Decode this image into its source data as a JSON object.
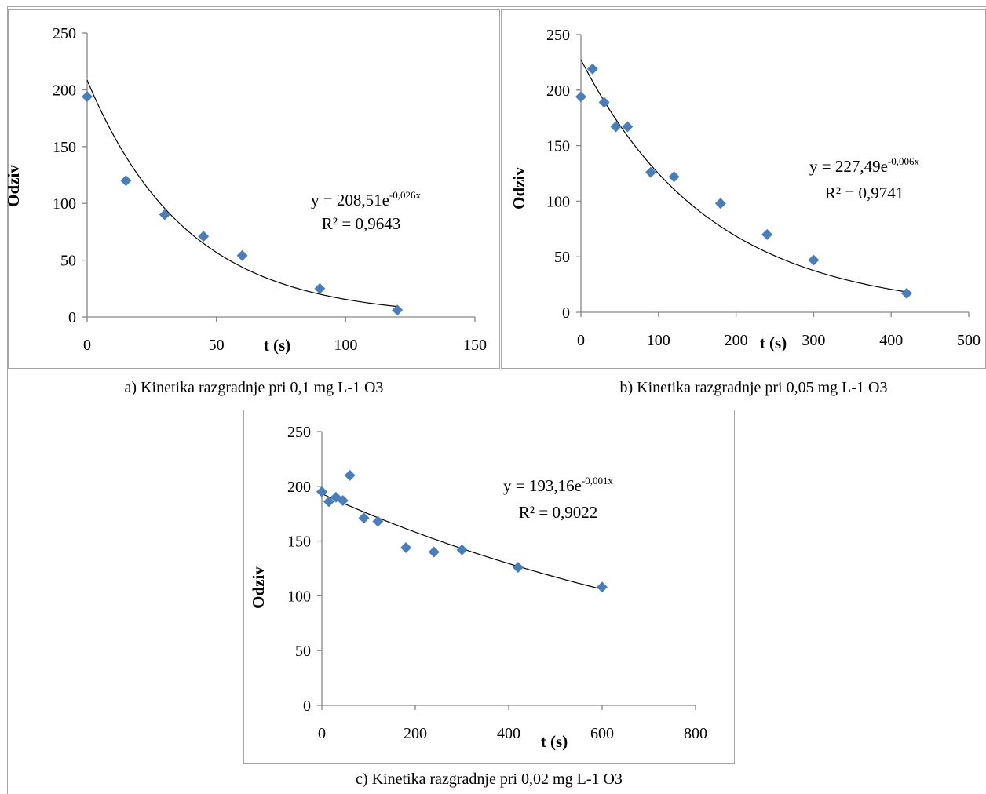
{
  "colors": {
    "marker": "#4a7ebb",
    "trendline": "#000000",
    "axis": "#868686",
    "frame": "#a6a6a6"
  },
  "chart_data": [
    {
      "type": "scatter",
      "caption": "a) Kinetika razgradnje pri 0,1 mg L-1 O3",
      "xlabel": "t (s)",
      "ylabel": "Odziv",
      "xlim": [
        0,
        150
      ],
      "ylim": [
        0,
        250
      ],
      "xticks": [
        "0",
        "50",
        "100",
        "150"
      ],
      "yticks": [
        "0",
        "50",
        "100",
        "150",
        "200",
        "250"
      ],
      "grid": false,
      "x": [
        0,
        15,
        30,
        45,
        60,
        90,
        120
      ],
      "y": [
        194,
        120,
        90,
        71,
        54,
        25,
        6
      ],
      "trendline": {
        "type": "exponential",
        "a": 208.51,
        "b": -0.026,
        "range": [
          0,
          120
        ],
        "equation_main": "y = 208,51e",
        "equation_exp": "-0,026x",
        "r2": "R² = 0,9643"
      }
    },
    {
      "type": "scatter",
      "caption": "b) Kinetika razgradnje pri 0,05 mg L-1 O3",
      "xlabel": "t (s)",
      "ylabel": "Odziv",
      "xlim": [
        0,
        500
      ],
      "ylim": [
        0,
        250
      ],
      "xticks": [
        "0",
        "100",
        "200",
        "300",
        "400",
        "500"
      ],
      "yticks": [
        "0",
        "50",
        "100",
        "150",
        "200",
        "250"
      ],
      "grid": false,
      "x": [
        0,
        15,
        30,
        45,
        60,
        90,
        120,
        180,
        240,
        300,
        420
      ],
      "y": [
        194,
        219,
        189,
        167,
        167,
        126,
        122,
        98,
        70,
        47,
        17
      ],
      "trendline": {
        "type": "exponential",
        "a": 227.49,
        "b": -0.006,
        "range": [
          0,
          420
        ],
        "equation_main": "y = 227,49e",
        "equation_exp": "-0,006x",
        "r2": "R² = 0,9741"
      }
    },
    {
      "type": "scatter",
      "caption": "c) Kinetika razgradnje pri 0,02 mg L-1 O3",
      "xlabel": "t (s)",
      "ylabel": "Odziv",
      "xlim": [
        0,
        800
      ],
      "ylim": [
        0,
        250
      ],
      "xticks": [
        "0",
        "200",
        "400",
        "600",
        "800"
      ],
      "yticks": [
        "0",
        "50",
        "100",
        "150",
        "200",
        "250"
      ],
      "grid": false,
      "x": [
        0,
        15,
        30,
        45,
        60,
        90,
        120,
        180,
        240,
        300,
        420,
        600
      ],
      "y": [
        195,
        186,
        190,
        187,
        210,
        171,
        168,
        144,
        140,
        142,
        126,
        108
      ],
      "trendline": {
        "type": "exponential",
        "a": 193.16,
        "b": -0.001,
        "range": [
          0,
          600
        ],
        "equation_main": "y = 193,16e",
        "equation_exp": "-0,001x",
        "r2": "R² = 0,9022"
      }
    }
  ]
}
